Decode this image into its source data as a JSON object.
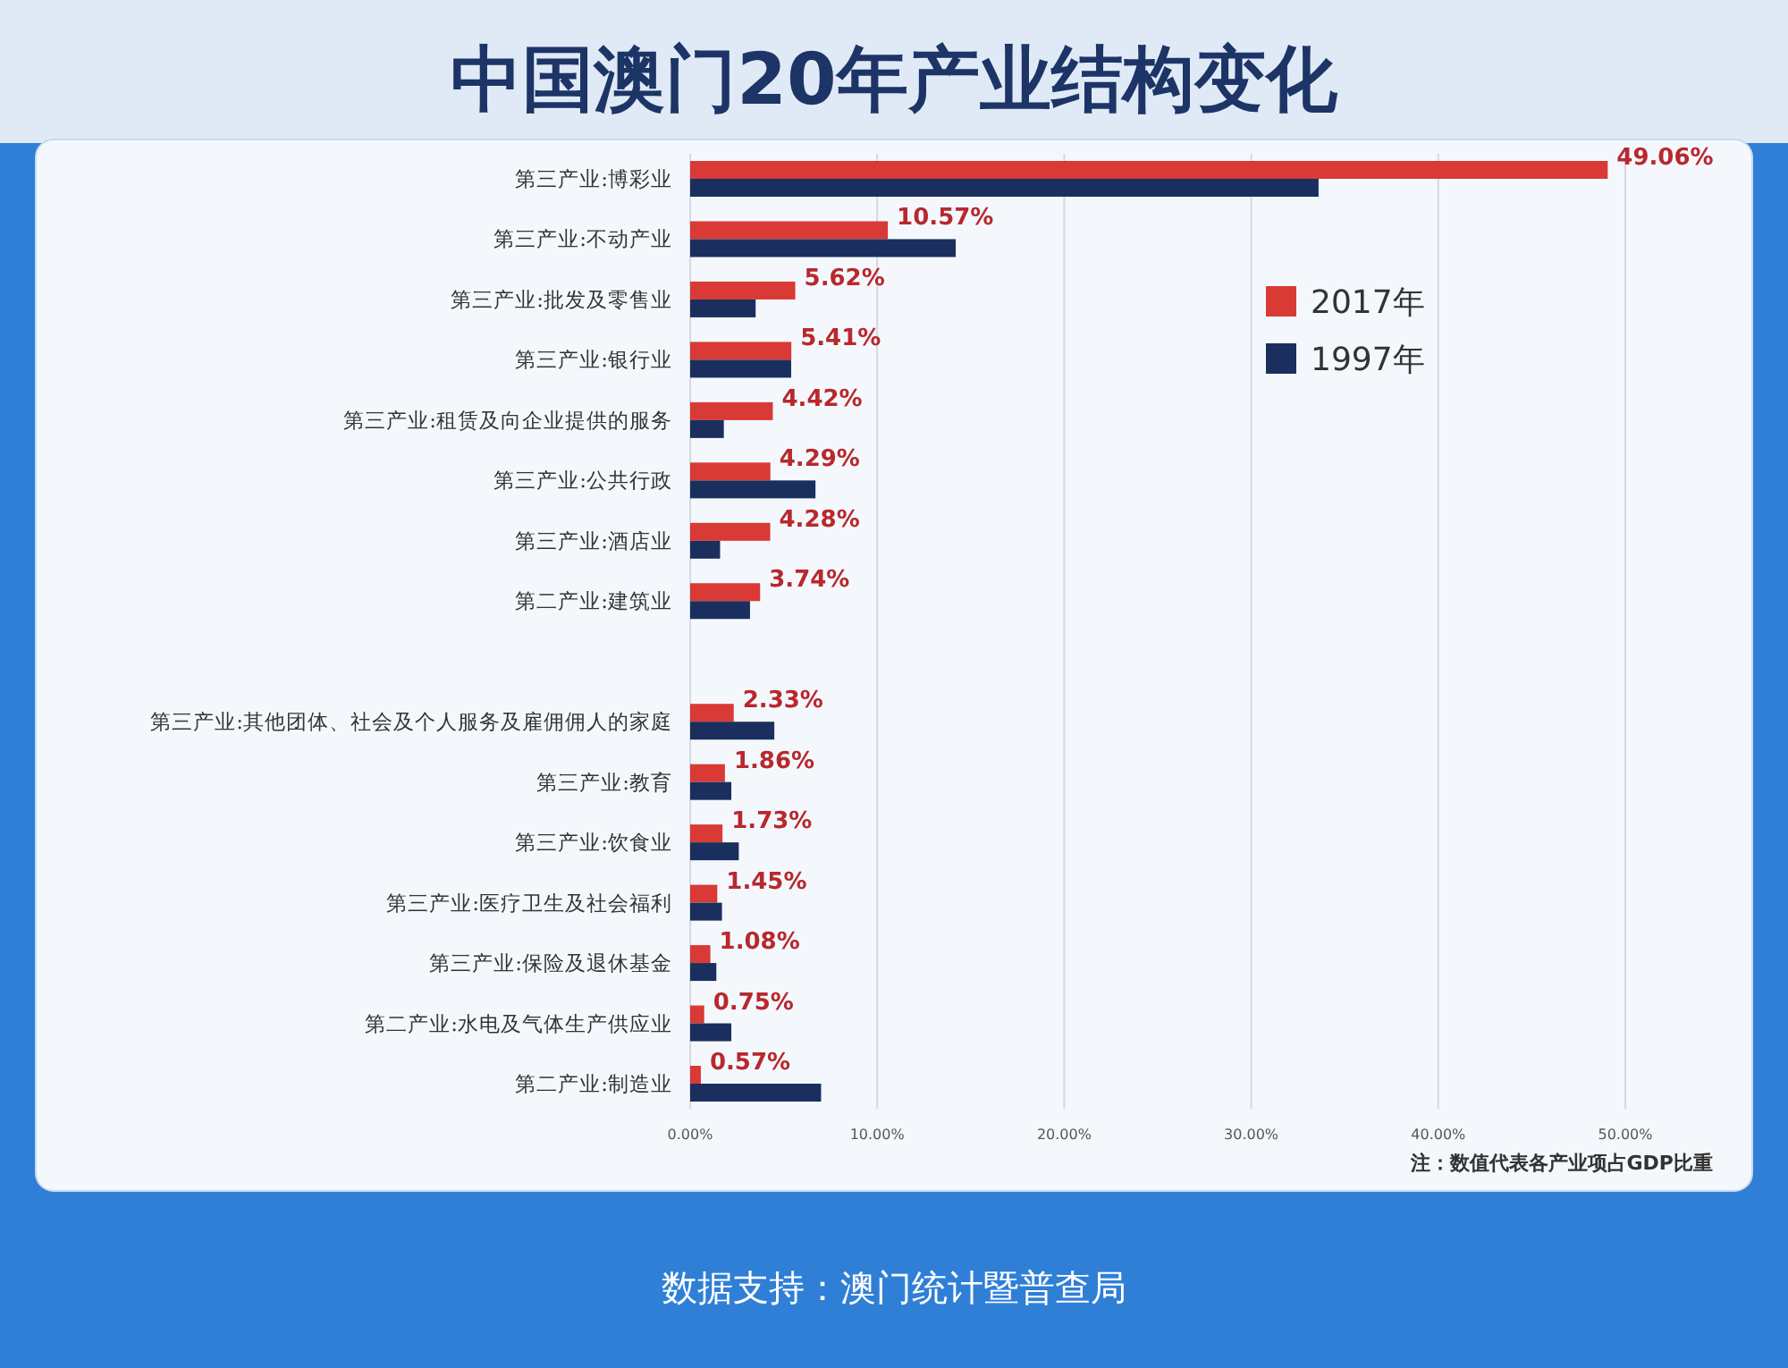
{
  "chart_data": {
    "type": "bar",
    "orientation": "horizontal",
    "title": "中国澳门20年产业结构变化",
    "categories": [
      "第三产业:博彩业",
      "第三产业:不动产业",
      "第三产业:批发及零售业",
      "第三产业:银行业",
      "第三产业:租赁及向企业提供的服务",
      "第三产业:公共行政",
      "第三产业:酒店业",
      "第二产业:建筑业",
      null,
      "第三产业:其他团体、社会及个人服务及雇佣佣人的家庭",
      "第三产业:教育",
      "第三产业:饮食业",
      "第三产业:医疗卫生及社会福利",
      "第三产业:保险及退休基金",
      "第二产业:水电及气体生产供应业",
      "第二产业:制造业"
    ],
    "series": [
      {
        "name": "2017年",
        "color": "#d93a35",
        "values": [
          49.06,
          10.57,
          5.62,
          5.41,
          4.42,
          4.29,
          4.28,
          3.74,
          null,
          2.33,
          1.86,
          1.73,
          1.45,
          1.08,
          0.75,
          0.57
        ],
        "value_labels": [
          "49.06%",
          "10.57%",
          "5.62%",
          "5.41%",
          "4.42%",
          "4.29%",
          "4.28%",
          "3.74%",
          null,
          "2.33%",
          "1.86%",
          "1.73%",
          "1.45%",
          "1.08%",
          "0.75%",
          "0.57%"
        ]
      },
      {
        "name": "1997年",
        "color": "#1b2f5e",
        "values": [
          33.6,
          14.2,
          3.5,
          5.4,
          1.8,
          6.7,
          1.6,
          3.2,
          null,
          4.5,
          2.2,
          2.6,
          1.7,
          1.4,
          2.2,
          7.0
        ]
      }
    ],
    "xlim": [
      0,
      50
    ],
    "xticks": [
      {
        "value": 0,
        "label": "0.00%"
      },
      {
        "value": 10,
        "label": "10.00%"
      },
      {
        "value": 20,
        "label": "20.00%"
      },
      {
        "value": 30,
        "label": "30.00%"
      },
      {
        "value": 40,
        "label": "40.00%"
      },
      {
        "value": 50,
        "label": "50.00%"
      }
    ],
    "grid": "x",
    "legend": "top right",
    "annotations": [
      "注：数值代表各产业项占GDP比重",
      "数据支持：澳门统计暨普查局"
    ]
  }
}
